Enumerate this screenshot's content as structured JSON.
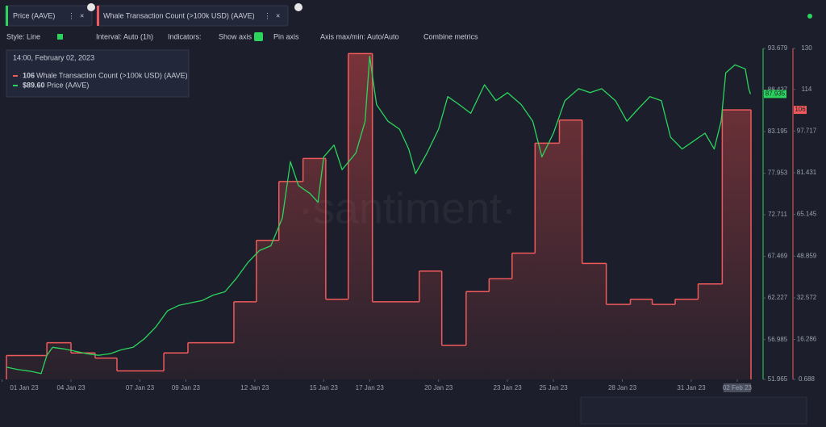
{
  "toolbar": {
    "style": "Style: Line",
    "interval": "Interval: Auto (1h)",
    "indicators": "Indicators:",
    "show_axis": "Show axis",
    "pin_axis": "Pin axis",
    "axis_minmax": "Axis max/min: Auto/Auto",
    "combine": "Combine metrics"
  },
  "tooltip": {
    "date": "14:00, February 02, 2023",
    "items": [
      {
        "value": "106"
      },
      {
        "value": "$89.60"
      }
    ]
  },
  "watermark": "·santiment·",
  "chart_data": {
    "type": "line",
    "xlim": [
      0.19,
      32.6
    ],
    "xticks": [
      {
        "value": 0,
        "label": "01 Jan 23"
      },
      {
        "value": 3,
        "label": "04 Jan 23"
      },
      {
        "value": 6,
        "label": "07 Jan 23"
      },
      {
        "value": 8,
        "label": "09 Jan 23"
      },
      {
        "value": 11,
        "label": "12 Jan 23"
      },
      {
        "value": 14,
        "label": "15 Jan 23"
      },
      {
        "value": 16,
        "label": "17 Jan 23"
      },
      {
        "value": 19,
        "label": "20 Jan 23"
      },
      {
        "value": 22,
        "label": "23 Jan 23"
      },
      {
        "value": 24,
        "label": "25 Jan 23"
      },
      {
        "value": 27,
        "label": "28 Jan 23"
      },
      {
        "value": 30,
        "label": "31 Jan 23"
      },
      {
        "value": 32,
        "label": "02 Feb 23"
      }
    ],
    "ylim": [
      51.965,
      93.679
    ],
    "yticks": [
      51.965,
      56.985,
      62.227,
      67.469,
      72.711,
      77.953,
      83.195,
      88.437,
      93.679
    ],
    "y2lim": [
      0.688,
      130
    ],
    "y2ticks": [
      0.688,
      16.286,
      32.572,
      48.859,
      65.145,
      81.431,
      97.717,
      114,
      130
    ],
    "series": [
      {
        "name": "Price (AAVE)",
        "color": "#2bd55c",
        "axis": "y",
        "x": [
          0.19,
          0.7,
          1.2,
          1.7,
          1.95,
          2.2,
          2.7,
          3.2,
          3.7,
          4.2,
          4.7,
          5.2,
          5.7,
          6.2,
          6.7,
          7.2,
          7.7,
          8.2,
          8.7,
          9.2,
          9.7,
          10.2,
          10.7,
          11.2,
          11.7,
          12.2,
          12.55,
          12.9,
          13.4,
          13.75,
          14.0,
          14.45,
          14.8,
          15.4,
          15.8,
          16.0,
          16.3,
          16.8,
          17.3,
          17.7,
          18.0,
          18.5,
          19.0,
          19.4,
          19.9,
          20.4,
          21.0,
          21.5,
          22.0,
          22.6,
          23.1,
          23.5,
          24.0,
          24.5,
          25.1,
          25.6,
          26.1,
          26.7,
          27.2,
          27.7,
          28.2,
          28.7,
          29.1,
          29.6,
          30.1,
          30.6,
          31.0,
          31.3,
          31.5,
          31.9,
          32.35,
          32.5,
          32.58
        ],
        "values": [
          53.5,
          53.2,
          53.0,
          52.7,
          55.0,
          56.0,
          55.8,
          55.5,
          55.2,
          55.0,
          55.2,
          55.7,
          56.0,
          57.1,
          58.6,
          60.6,
          61.3,
          61.6,
          61.9,
          62.6,
          63.0,
          64.7,
          66.7,
          68.2,
          68.8,
          72.3,
          79.4,
          76.4,
          75.4,
          74.3,
          80.0,
          81.5,
          78.4,
          80.5,
          84.5,
          92.7,
          86.6,
          84.5,
          83.5,
          81.0,
          77.9,
          80.5,
          83.5,
          87.6,
          86.6,
          85.5,
          89.1,
          87.1,
          88.1,
          86.6,
          84.5,
          80.0,
          83.0,
          87.1,
          88.6,
          88.1,
          88.6,
          87.1,
          84.5,
          86.1,
          87.6,
          87.1,
          82.5,
          81.0,
          82.0,
          83.0,
          81.0,
          84.5,
          90.6,
          91.6,
          91.1,
          88.6,
          87.935
        ]
      },
      {
        "name": "Whale Transaction Count (>100k USD) (AAVE)",
        "color": "#f05a5a",
        "axis": "y2",
        "style": "step",
        "x": [
          0.19,
          1.95,
          3.0,
          4.05,
          5.0,
          7.04,
          8.09,
          10.09,
          11.07,
          12.05,
          13.1,
          14.09,
          15.07,
          16.12,
          18.16,
          19.14,
          20.2,
          21.2,
          22.2,
          23.2,
          24.26,
          25.25,
          26.3,
          27.35,
          28.3,
          29.3,
          30.3,
          31.35
        ],
        "values": [
          10,
          15,
          11,
          9,
          4,
          11,
          15,
          31,
          55,
          78,
          87,
          32,
          128,
          31,
          43,
          14,
          35,
          40,
          50,
          93,
          102,
          46,
          30,
          32,
          30,
          32,
          38,
          106
        ]
      }
    ]
  }
}
